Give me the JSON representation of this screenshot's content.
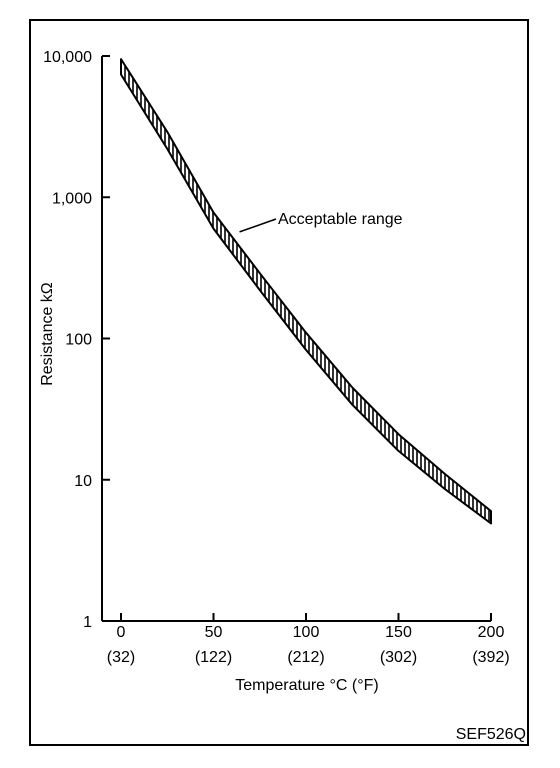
{
  "chart_data": {
    "type": "area",
    "xlabel": "Temperature °C (°F)",
    "ylabel": "Resistance kΩ",
    "y_scale": "log",
    "xlim": [
      0,
      200
    ],
    "ylim": [
      1,
      10000
    ],
    "grid": false,
    "x_ticks": [
      {
        "value": 0,
        "label": "0",
        "sublabel": "(32)"
      },
      {
        "value": 50,
        "label": "50",
        "sublabel": "(122)"
      },
      {
        "value": 100,
        "label": "100",
        "sublabel": "(212)"
      },
      {
        "value": 150,
        "label": "150",
        "sublabel": "(302)"
      },
      {
        "value": 200,
        "label": "200",
        "sublabel": "(392)"
      }
    ],
    "y_ticks": [
      {
        "value": 1,
        "label": "1"
      },
      {
        "value": 10,
        "label": "10"
      },
      {
        "value": 100,
        "label": "100"
      },
      {
        "value": 1000,
        "label": "1,000"
      },
      {
        "value": 10000,
        "label": "10,000"
      }
    ],
    "series": [
      {
        "name": "Acceptable range",
        "x": [
          0,
          25,
          50,
          75,
          100,
          125,
          150,
          175,
          200
        ],
        "upper": [
          9500,
          2900,
          780,
          290,
          110,
          45,
          21,
          11,
          6.0
        ],
        "lower": [
          7400,
          2200,
          600,
          220,
          83,
          34,
          16,
          8.6,
          4.9
        ]
      }
    ],
    "annotations": [
      {
        "text": "Acceptable range",
        "x": 63,
        "y": 550
      }
    ]
  },
  "figure_code": "SEF526Q"
}
